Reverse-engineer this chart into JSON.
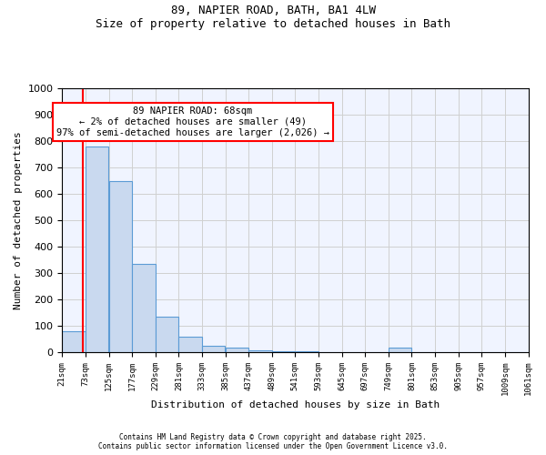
{
  "title_line1": "89, NAPIER ROAD, BATH, BA1 4LW",
  "title_line2": "Size of property relative to detached houses in Bath",
  "xlabel": "Distribution of detached houses by size in Bath",
  "ylabel": "Number of detached properties",
  "bins": [
    21,
    73,
    125,
    177,
    229,
    281,
    333,
    385,
    437,
    489,
    541,
    593,
    645,
    697,
    749,
    801,
    853,
    905,
    957,
    1009,
    1061
  ],
  "bar_heights": [
    80,
    780,
    650,
    335,
    135,
    60,
    25,
    18,
    8,
    5,
    3,
    2,
    2,
    2,
    18,
    2,
    2,
    2,
    2,
    2
  ],
  "bar_color": "#c9d9ef",
  "bar_edge_color": "#5b9bd5",
  "property_line_x": 68,
  "property_line_color": "red",
  "annotation_text": "89 NAPIER ROAD: 68sqm\n← 2% of detached houses are smaller (49)\n97% of semi-detached houses are larger (2,026) →",
  "annotation_box_color": "red",
  "ylim": [
    0,
    1000
  ],
  "yticks": [
    0,
    100,
    200,
    300,
    400,
    500,
    600,
    700,
    800,
    900,
    1000
  ],
  "grid_color": "#d0d0d0",
  "background_color": "#f0f4ff",
  "footer_line1": "Contains HM Land Registry data © Crown copyright and database right 2025.",
  "footer_line2": "Contains public sector information licensed under the Open Government Licence v3.0."
}
